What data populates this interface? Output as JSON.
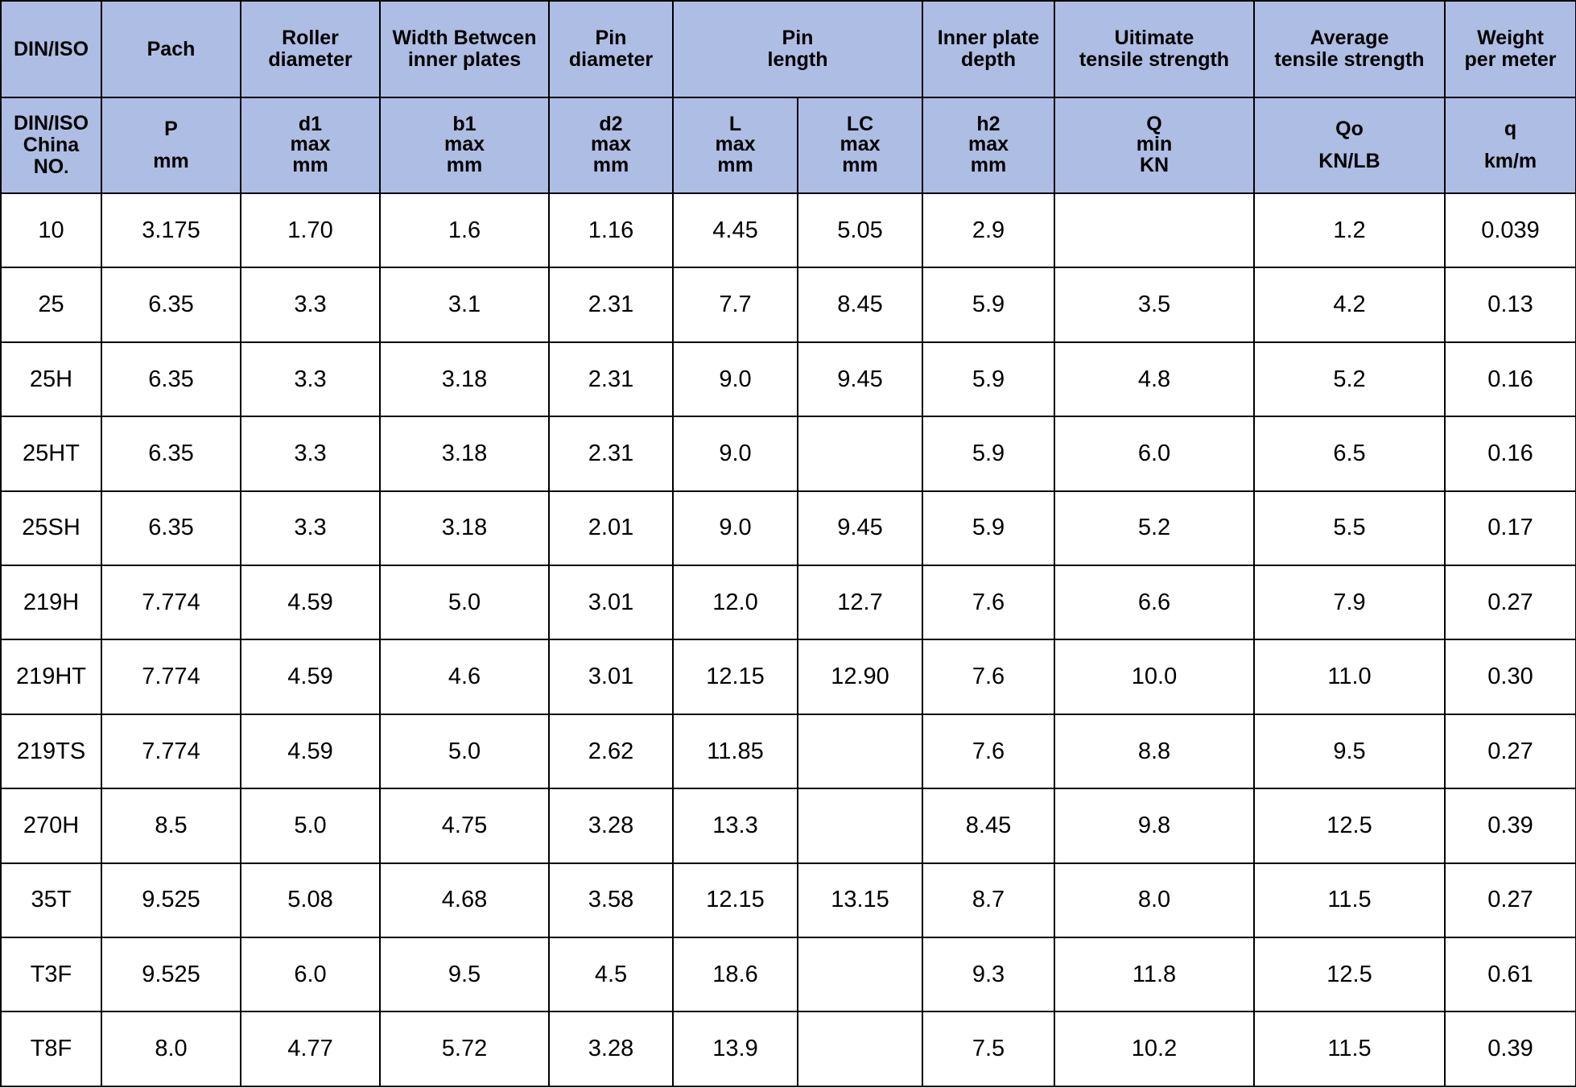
{
  "header": {
    "top": [
      {
        "lines": [
          "DIN/ISO"
        ]
      },
      {
        "lines": [
          "Pach"
        ]
      },
      {
        "lines": [
          "Roller",
          "diameter"
        ]
      },
      {
        "lines": [
          "Width Betwcen",
          "inner plates"
        ]
      },
      {
        "lines": [
          "Pin",
          "diameter"
        ]
      },
      {
        "lines": [
          "Pin",
          "length"
        ]
      },
      {
        "lines": [
          "Inner plate",
          "depth"
        ]
      },
      {
        "lines": [
          "Uitimate",
          "tensile strength"
        ]
      },
      {
        "lines": [
          "Average",
          "tensile strength"
        ]
      },
      {
        "lines": [
          "Weight",
          "per meter"
        ]
      }
    ],
    "sub": {
      "no": {
        "l1": "DIN/ISO",
        "l2": "China",
        "l3": "NO",
        "dot": "."
      },
      "p": {
        "sym": "P",
        "unit": "mm"
      },
      "d1": {
        "sym": "d1",
        "qual": "max",
        "unit": "mm"
      },
      "b1": {
        "sym": "b1",
        "qual": "max",
        "unit": "mm"
      },
      "d2": {
        "sym": "d2",
        "qual": "max",
        "unit": "mm"
      },
      "l": {
        "sym": "L",
        "qual": "max",
        "unit": "mm"
      },
      "lc": {
        "sym": "LC",
        "qual": "max",
        "unit": "mm"
      },
      "h2": {
        "sym": "h2",
        "qual": "max",
        "unit": "mm"
      },
      "q": {
        "sym": "Q",
        "qual": "min",
        "unit": "KN"
      },
      "qo": {
        "sym": "Qo",
        "unit": "KN/LB"
      },
      "qw": {
        "sym": "q",
        "unit": "km/m"
      }
    }
  },
  "rows": [
    [
      "10",
      "3.175",
      "1.70",
      "1.6",
      "1.16",
      "4.45",
      "5.05",
      "2.9",
      "",
      "1.2",
      "0.039"
    ],
    [
      "25",
      "6.35",
      "3.3",
      "3.1",
      "2.31",
      "7.7",
      "8.45",
      "5.9",
      "3.5",
      "4.2",
      "0.13"
    ],
    [
      "25H",
      "6.35",
      "3.3",
      "3.18",
      "2.31",
      "9.0",
      "9.45",
      "5.9",
      "4.8",
      "5.2",
      "0.16"
    ],
    [
      "25HT",
      "6.35",
      "3.3",
      "3.18",
      "2.31",
      "9.0",
      "",
      "5.9",
      "6.0",
      "6.5",
      "0.16"
    ],
    [
      "25SH",
      "6.35",
      "3.3",
      "3.18",
      "2.01",
      "9.0",
      "9.45",
      "5.9",
      "5.2",
      "5.5",
      "0.17"
    ],
    [
      "219H",
      "7.774",
      "4.59",
      "5.0",
      "3.01",
      "12.0",
      "12.7",
      "7.6",
      "6.6",
      "7.9",
      "0.27"
    ],
    [
      "219HT",
      "7.774",
      "4.59",
      "4.6",
      "3.01",
      "12.15",
      "12.90",
      "7.6",
      "10.0",
      "11.0",
      "0.30"
    ],
    [
      "219TS",
      "7.774",
      "4.59",
      "5.0",
      "2.62",
      "11.85",
      "",
      "7.6",
      "8.8",
      "9.5",
      "0.27"
    ],
    [
      "270H",
      "8.5",
      "5.0",
      "4.75",
      "3.28",
      "13.3",
      "",
      "8.45",
      "9.8",
      "12.5",
      "0.39"
    ],
    [
      "35T",
      "9.525",
      "5.08",
      "4.68",
      "3.58",
      "12.15",
      "13.15",
      "8.7",
      "8.0",
      "11.5",
      "0.27"
    ],
    [
      "T3F",
      "9.525",
      "6.0",
      "9.5",
      "4.5",
      "18.6",
      "",
      "9.3",
      "11.8",
      "12.5",
      "0.61"
    ],
    [
      "T8F",
      "8.0",
      "4.77",
      "5.72",
      "3.28",
      "13.9",
      "",
      "7.5",
      "10.2",
      "11.5",
      "0.39"
    ]
  ],
  "colors": {
    "header_bg": "#aebde3",
    "border": "#000000"
  }
}
